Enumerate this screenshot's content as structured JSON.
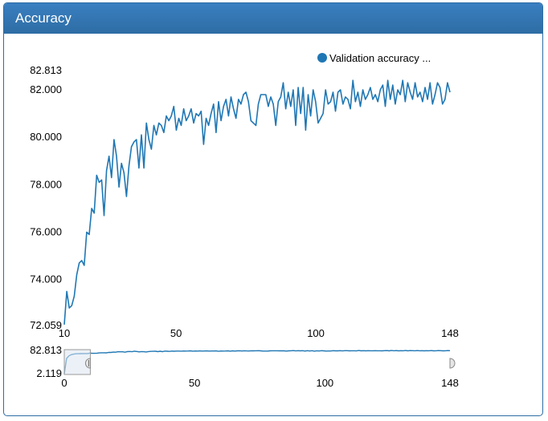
{
  "panel": {
    "title": "Accuracy"
  },
  "colors": {
    "header": "#2e6da4",
    "series": "#1f77b4"
  },
  "chart_data": {
    "type": "line",
    "title": "",
    "xlabel": "",
    "ylabel": "",
    "xlim": [
      10,
      148
    ],
    "ylim": [
      72.059,
      82.813
    ],
    "legend": {
      "placement": "top-right",
      "label": "Validation accuracy ..."
    },
    "y_tick_labels": [
      "72.059",
      "74.000",
      "76.000",
      "78.000",
      "80.000",
      "82.000",
      "82.813"
    ],
    "y_ticks": [
      72.059,
      74,
      76,
      78,
      80,
      82,
      82.813
    ],
    "x_tick_labels": [
      "10",
      "50",
      "100",
      "148"
    ],
    "x_ticks": [
      10,
      50,
      100,
      148
    ],
    "series": [
      {
        "x_start": 10,
        "values": [
          72.1,
          73.5,
          72.8,
          72.9,
          73.3,
          74.2,
          74.7,
          74.8,
          74.6,
          76.0,
          75.9,
          77.0,
          76.8,
          78.4,
          78.1,
          78.2,
          76.7,
          78.6,
          79.2,
          78.3,
          79.9,
          79.2,
          77.9,
          78.9,
          78.5,
          77.5,
          78.8,
          79.6,
          79.8,
          79.9,
          78.7,
          80.1,
          78.7,
          80.6,
          79.9,
          79.5,
          80.5,
          80.1,
          80.6,
          80.5,
          80.2,
          80.9,
          80.7,
          80.9,
          81.3,
          80.3,
          80.8,
          80.5,
          81.2,
          80.7,
          80.9,
          81.2,
          80.6,
          81.0,
          80.9,
          81.1,
          79.7,
          80.8,
          80.5,
          81.0,
          81.4,
          80.2,
          81.5,
          80.7,
          81.3,
          81.6,
          80.9,
          81.7,
          81.2,
          80.8,
          81.6,
          81.4,
          81.8,
          81.9,
          81.5,
          80.7,
          80.6,
          80.5,
          81.4,
          81.8,
          81.8,
          81.8,
          81.3,
          81.7,
          81.4,
          80.5,
          81.5,
          81.7,
          82.3,
          81.2,
          81.9,
          81.3,
          82.0,
          80.5,
          82.1,
          81.0,
          82.1,
          80.3,
          81.8,
          80.9,
          82.0,
          81.5,
          80.6,
          80.8,
          81.0,
          82.0,
          81.4,
          81.5,
          81.9,
          81.1,
          81.9,
          82.0,
          81.4,
          81.7,
          81.6,
          81.2,
          82.4,
          81.5,
          81.9,
          81.3,
          82.0,
          81.6,
          81.8,
          82.1,
          81.6,
          81.8,
          81.5,
          82.0,
          82.2,
          81.3,
          82.4,
          81.6,
          82.2,
          81.4,
          82.0,
          81.8,
          82.4,
          81.5,
          82.3,
          81.9,
          81.6,
          82.3,
          81.7,
          81.9,
          81.5,
          82.1,
          81.6,
          82.3,
          81.4,
          81.8,
          82.3,
          82.1,
          81.4,
          81.6,
          82.3,
          81.9
        ]
      }
    ]
  },
  "navigator": {
    "ylim": [
      2.119,
      82.813
    ],
    "y_tick_labels": [
      "82.813",
      "2.119"
    ],
    "x_tick_labels": [
      "0",
      "50",
      "100",
      "148"
    ],
    "x_ticks": [
      0,
      50,
      100,
      148
    ],
    "xlim": [
      0,
      148
    ],
    "selection": [
      10,
      148
    ]
  }
}
